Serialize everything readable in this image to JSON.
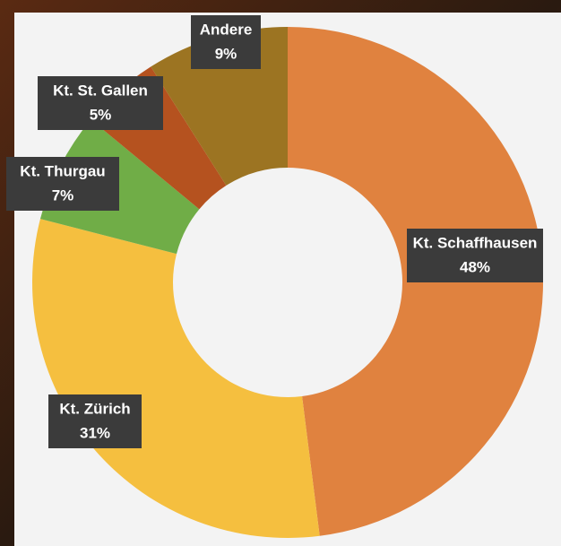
{
  "chart_data": {
    "type": "donut",
    "categories": [
      "Kt. Schaffhausen",
      "Kt. Zürich",
      "Kt. Thurgau",
      "Kt. St. Gallen",
      "Andere"
    ],
    "values": [
      48,
      31,
      7,
      5,
      9
    ],
    "value_labels": [
      "48%",
      "31%",
      "7%",
      "5%",
      "9%"
    ],
    "colors": [
      "#e0823f",
      "#f5bf3f",
      "#70ad47",
      "#b5521f",
      "#9c7422"
    ]
  }
}
